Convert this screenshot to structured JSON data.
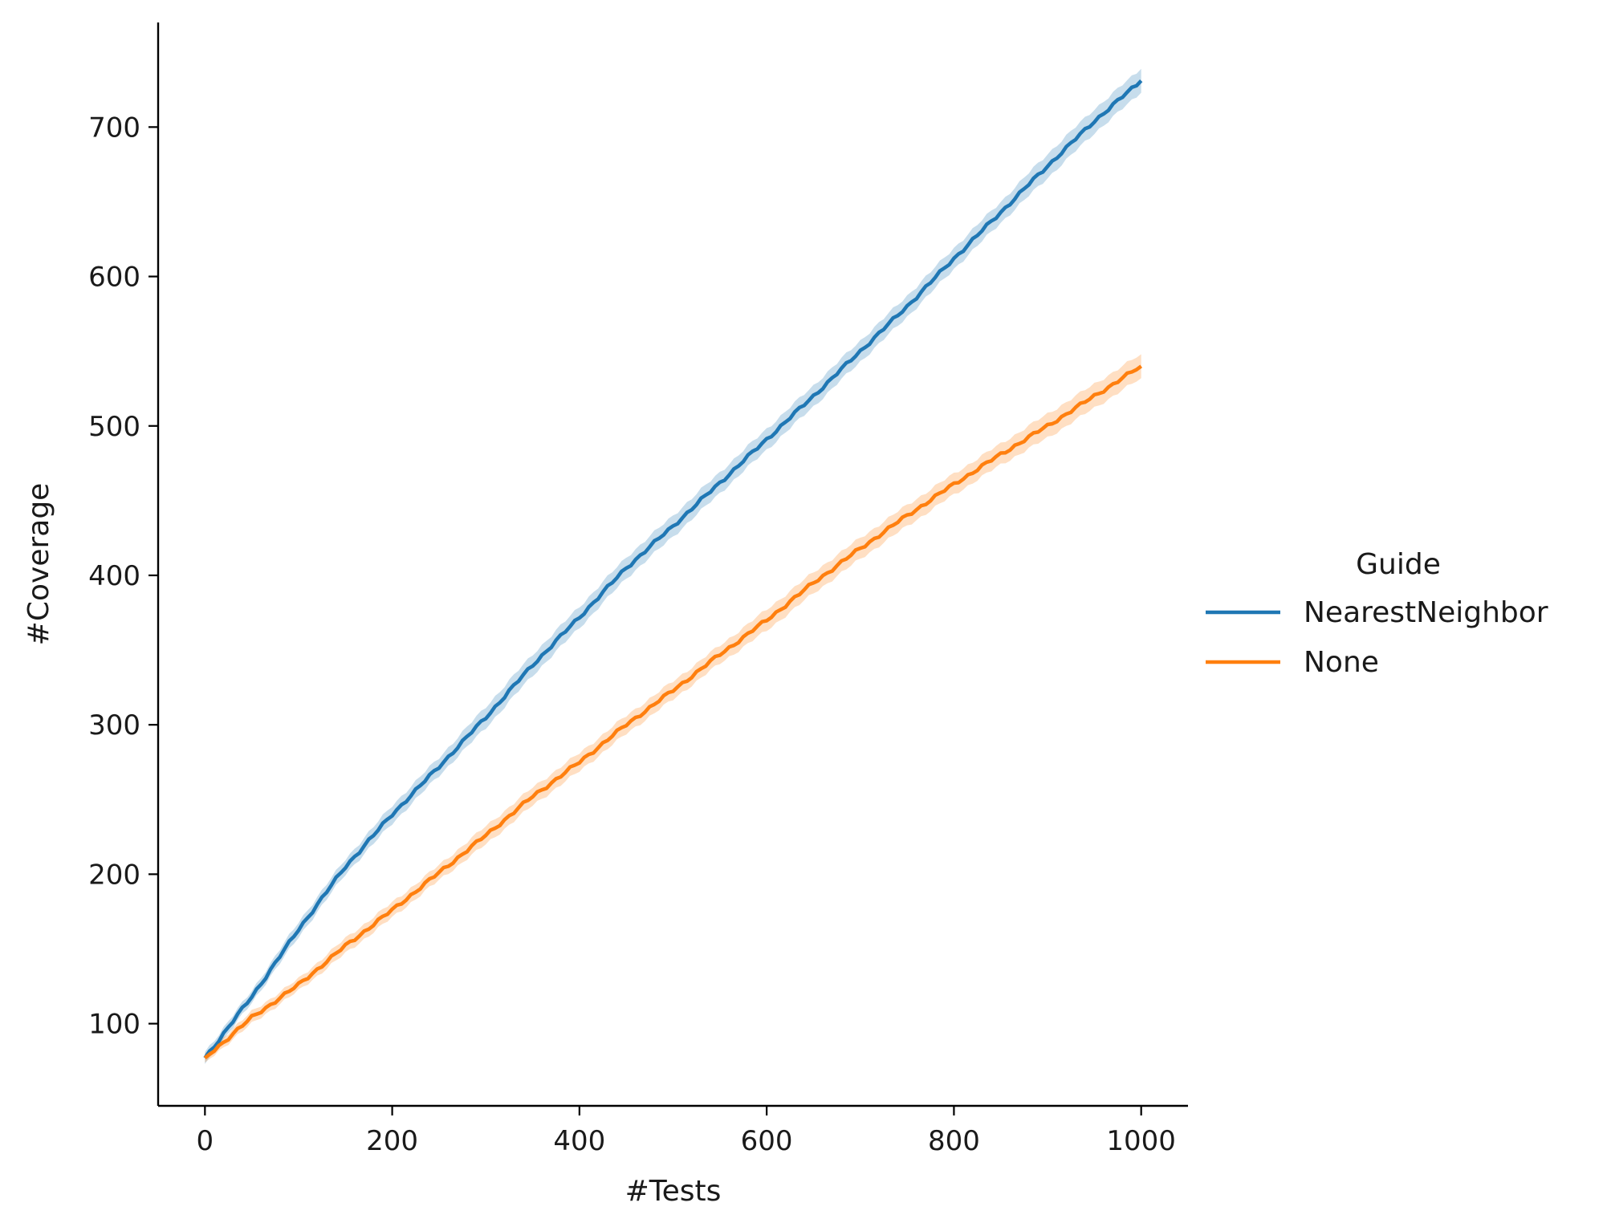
{
  "chart_data": {
    "type": "line",
    "title": "",
    "xlabel": "#Tests",
    "ylabel": "#Coverage",
    "xlim": [
      -50,
      1050
    ],
    "ylim": [
      45,
      770
    ],
    "xticks": [
      0,
      200,
      400,
      600,
      800,
      1000
    ],
    "yticks": [
      100,
      200,
      300,
      400,
      500,
      600,
      700
    ],
    "grid": false,
    "legend": {
      "title": "Guide",
      "placement": "right"
    },
    "x": [
      0,
      50,
      100,
      150,
      200,
      250,
      300,
      350,
      400,
      450,
      500,
      550,
      600,
      650,
      700,
      750,
      800,
      850,
      900,
      950,
      1000
    ],
    "series": [
      {
        "name": "NearestNeighbor",
        "color": "#1f77b4",
        "values": [
          77,
          118,
          163,
          205,
          240,
          272,
          305,
          340,
          372,
          405,
          433,
          462,
          491,
          520,
          550,
          580,
          612,
          643,
          674,
          704,
          731
        ],
        "ci": [
          4,
          4,
          5,
          5,
          6,
          6,
          7,
          7,
          7,
          7,
          7,
          7,
          7,
          7,
          7,
          7,
          7,
          7,
          8,
          8,
          8
        ]
      },
      {
        "name": "None",
        "color": "#ff7f0e",
        "values": [
          77,
          104,
          126,
          152,
          176,
          201,
          226,
          252,
          275,
          300,
          323,
          347,
          370,
          395,
          418,
          440,
          461,
          481,
          500,
          520,
          540
        ],
        "ci": [
          3,
          4,
          4,
          5,
          5,
          5,
          6,
          6,
          6,
          6,
          6,
          6,
          7,
          7,
          7,
          7,
          7,
          7,
          8,
          8,
          8
        ]
      }
    ]
  }
}
